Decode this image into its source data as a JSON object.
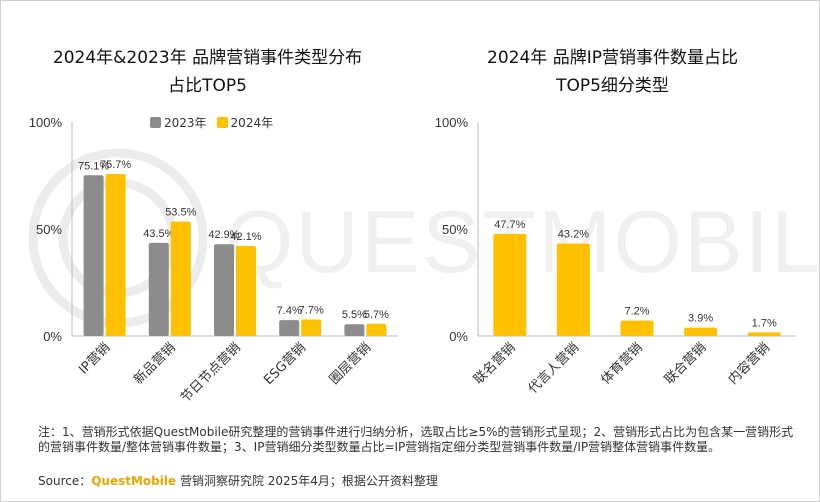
{
  "chart_data": [
    {
      "type": "bar",
      "title_line1": "2024年&2023年 品牌营销事件类型分布",
      "title_line2": "占比TOP5",
      "categories": [
        "IP营销",
        "新品营销",
        "节日节点营销",
        "ESG营销",
        "圈层营销"
      ],
      "series": [
        {
          "name": "2023年",
          "color": "#8c8c8c",
          "values": [
            75.1,
            43.5,
            42.9,
            7.4,
            5.5
          ],
          "labels": [
            "75.1%",
            "43.5%",
            "42.9%",
            "7.4%",
            "5.5%"
          ]
        },
        {
          "name": "2024年",
          "color": "#ffc000",
          "values": [
            75.7,
            53.5,
            42.1,
            7.7,
            5.7
          ],
          "labels": [
            "75.7%",
            "53.5%",
            "42.1%",
            "7.7%",
            "5.7%"
          ]
        }
      ],
      "yticks": [
        "100%",
        "50%",
        "0%"
      ],
      "ylim": [
        0,
        100
      ]
    },
    {
      "type": "bar",
      "title_line1": "2024年 品牌IP营销事件数量占比",
      "title_line2": "TOP5细分类型",
      "categories": [
        "联名营销",
        "代言人营销",
        "体育营销",
        "联合营销",
        "内容营销"
      ],
      "series": [
        {
          "color": "#ffc000",
          "values": [
            47.7,
            43.2,
            7.2,
            3.9,
            1.7
          ],
          "labels": [
            "47.7%",
            "43.2%",
            "7.2%",
            "3.9%",
            "1.7%"
          ]
        }
      ],
      "yticks": [
        "100%",
        "50%",
        "0%"
      ],
      "ylim": [
        0,
        100
      ]
    }
  ],
  "footer": {
    "note": "注：1、营销形式依据QuestMobile研究整理的营销事件进行归纳分析，选取占比≥5%的营销形式呈现；2、营销形式占比为包含某一营销形式的营销事件数量/整体营销事件数量；3、IP营销细分类型数量占比=IP营销指定细分类型营销事件数量/IP营销整体营销事件数量。",
    "source_prefix": "Source：",
    "source_brand": "QuestMobile",
    "source_suffix": " 营销洞察研究院 2025年4月；根据公开资料整理"
  },
  "watermark": "QUESTMOBILE"
}
